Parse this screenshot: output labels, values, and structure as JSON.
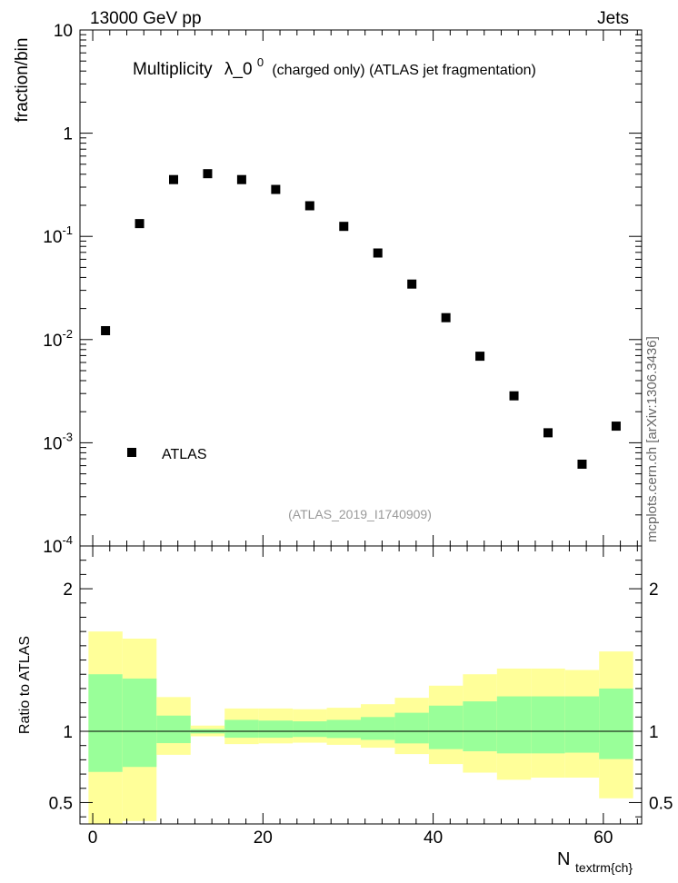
{
  "header": {
    "left": "13000 GeV pp",
    "right": "Jets"
  },
  "side_label": "mcplots.cern.ch [arXiv:1306.3436]",
  "chart_data": [
    {
      "type": "scatter",
      "title_main": "Multiplicity",
      "title_symbol": "λ_0",
      "title_sup": "0",
      "title_rest": "(charged only) (ATLAS jet fragmentation)",
      "ylabel": "fraction/bin",
      "yscale": "log",
      "ylim": [
        0.0001,
        10
      ],
      "xlim": [
        -1.5,
        64.5
      ],
      "ytick_labels": [
        {
          "base": "10",
          "exp": "-4",
          "value": 0.0001
        },
        {
          "base": "10",
          "exp": "-3",
          "value": 0.001
        },
        {
          "base": "10",
          "exp": "-2",
          "value": 0.01
        },
        {
          "base": "10",
          "exp": "-1",
          "value": 0.1
        },
        {
          "base": "1",
          "exp": "",
          "value": 1
        },
        {
          "base": "10",
          "exp": "",
          "value": 10
        }
      ],
      "legend": [
        {
          "name": "ATLAS",
          "marker": "square"
        }
      ],
      "watermark": "(ATLAS_2019_I1740909)",
      "series": [
        {
          "name": "ATLAS",
          "color": "#000000",
          "x": [
            1.5,
            5.5,
            9.5,
            13.5,
            17.5,
            21.5,
            25.5,
            29.5,
            33.5,
            37.5,
            41.5,
            45.5,
            49.5,
            53.5,
            57.5,
            61.5
          ],
          "y": [
            0.0122,
            0.133,
            0.355,
            0.405,
            0.355,
            0.285,
            0.198,
            0.125,
            0.069,
            0.0345,
            0.0163,
            0.0069,
            0.00285,
            0.00125,
            0.00062,
            0.00145
          ]
        }
      ]
    },
    {
      "type": "area",
      "ylabel": "Ratio to ATLAS",
      "xlabel_main": "N",
      "xlabel_sub": "textrm{ch}",
      "ylim": [
        0.35,
        2.3
      ],
      "xlim": [
        -1.5,
        64.5
      ],
      "yticks": [
        "0.5",
        "1",
        "2"
      ],
      "xticks": [
        "0",
        "20",
        "40",
        "60"
      ],
      "reference_line": 1,
      "bins": [
        {
          "lo": -0.5,
          "hi": 3.5,
          "y_lo": 0.35,
          "y_hi": 1.7,
          "g_lo": 0.715,
          "g_hi": 1.4
        },
        {
          "lo": 3.5,
          "hi": 7.5,
          "y_lo": 0.37,
          "y_hi": 1.65,
          "g_lo": 0.75,
          "g_hi": 1.37
        },
        {
          "lo": 7.5,
          "hi": 11.5,
          "y_lo": 0.835,
          "y_hi": 1.24,
          "g_lo": 0.917,
          "g_hi": 1.11
        },
        {
          "lo": 11.5,
          "hi": 15.5,
          "y_lo": 0.965,
          "y_hi": 1.04,
          "g_lo": 0.985,
          "g_hi": 1.015
        },
        {
          "lo": 15.5,
          "hi": 19.5,
          "y_lo": 0.91,
          "y_hi": 1.16,
          "g_lo": 0.955,
          "g_hi": 1.08
        },
        {
          "lo": 19.5,
          "hi": 23.5,
          "y_lo": 0.915,
          "y_hi": 1.16,
          "g_lo": 0.955,
          "g_hi": 1.075
        },
        {
          "lo": 23.5,
          "hi": 27.5,
          "y_lo": 0.92,
          "y_hi": 1.155,
          "g_lo": 0.96,
          "g_hi": 1.07
        },
        {
          "lo": 27.5,
          "hi": 31.5,
          "y_lo": 0.905,
          "y_hi": 1.165,
          "g_lo": 0.953,
          "g_hi": 1.08
        },
        {
          "lo": 31.5,
          "hi": 35.5,
          "y_lo": 0.885,
          "y_hi": 1.19,
          "g_lo": 0.94,
          "g_hi": 1.1
        },
        {
          "lo": 35.5,
          "hi": 39.5,
          "y_lo": 0.84,
          "y_hi": 1.235,
          "g_lo": 0.915,
          "g_hi": 1.13
        },
        {
          "lo": 39.5,
          "hi": 43.5,
          "y_lo": 0.77,
          "y_hi": 1.32,
          "g_lo": 0.875,
          "g_hi": 1.18
        },
        {
          "lo": 43.5,
          "hi": 47.5,
          "y_lo": 0.71,
          "y_hi": 1.4,
          "g_lo": 0.86,
          "g_hi": 1.21
        },
        {
          "lo": 47.5,
          "hi": 51.5,
          "y_lo": 0.66,
          "y_hi": 1.44,
          "g_lo": 0.845,
          "g_hi": 1.245
        },
        {
          "lo": 51.5,
          "hi": 55.5,
          "y_lo": 0.675,
          "y_hi": 1.44,
          "g_lo": 0.845,
          "g_hi": 1.245
        },
        {
          "lo": 55.5,
          "hi": 59.5,
          "y_lo": 0.675,
          "y_hi": 1.43,
          "g_lo": 0.85,
          "g_hi": 1.245
        },
        {
          "lo": 59.5,
          "hi": 63.5,
          "y_lo": 0.53,
          "y_hi": 1.56,
          "g_lo": 0.805,
          "g_hi": 1.3
        }
      ],
      "colors": {
        "outer": "#ffff99",
        "inner": "#99ff99",
        "line": "#000000"
      }
    }
  ]
}
